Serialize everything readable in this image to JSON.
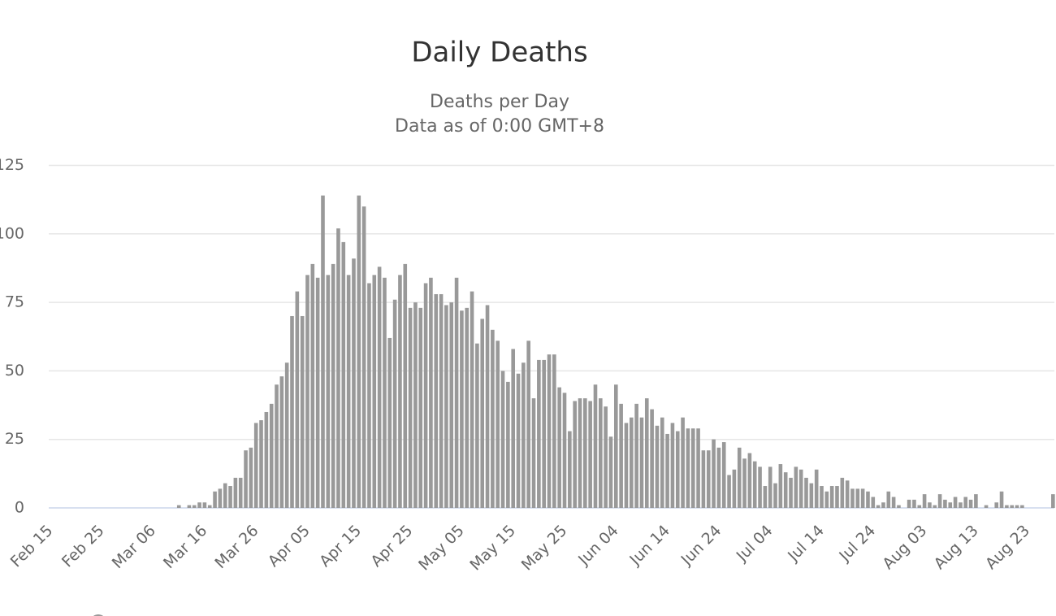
{
  "chart_data": {
    "type": "bar",
    "title": "Daily Deaths",
    "subtitle": [
      "Deaths per Day",
      "Data as of 0:00 GMT+8"
    ],
    "categories": [
      "Feb 15",
      null,
      null,
      null,
      null,
      null,
      null,
      null,
      null,
      null,
      "Feb 25",
      null,
      null,
      null,
      null,
      null,
      null,
      null,
      null,
      null,
      "Mar 06",
      null,
      null,
      null,
      null,
      null,
      null,
      null,
      null,
      null,
      "Mar 16",
      null,
      null,
      null,
      null,
      null,
      null,
      null,
      null,
      null,
      "Mar 26",
      null,
      null,
      null,
      null,
      null,
      null,
      null,
      null,
      null,
      "Apr 05",
      null,
      null,
      null,
      null,
      null,
      null,
      null,
      null,
      null,
      "Apr 15",
      null,
      null,
      null,
      null,
      null,
      null,
      null,
      null,
      null,
      "Apr 25",
      null,
      null,
      null,
      null,
      null,
      null,
      null,
      null,
      null,
      "May 05",
      null,
      null,
      null,
      null,
      null,
      null,
      null,
      null,
      null,
      "May 15",
      null,
      null,
      null,
      null,
      null,
      null,
      null,
      null,
      null,
      "May 25",
      null,
      null,
      null,
      null,
      null,
      null,
      null,
      null,
      null,
      "Jun 04",
      null,
      null,
      null,
      null,
      null,
      null,
      null,
      null,
      null,
      "Jun 14",
      null,
      null,
      null,
      null,
      null,
      null,
      null,
      null,
      null,
      "Jun 24",
      null,
      null,
      null,
      null,
      null,
      null,
      null,
      null,
      null,
      "Jul 04",
      null,
      null,
      null,
      null,
      null,
      null,
      null,
      null,
      null,
      "Jul 14",
      null,
      null,
      null,
      null,
      null,
      null,
      null,
      null,
      null,
      "Jul 24",
      null,
      null,
      null,
      null,
      null,
      null,
      null,
      null,
      null,
      "Aug 03",
      null,
      null,
      null,
      null,
      null,
      null,
      null,
      null,
      null,
      "Aug 13",
      null,
      null,
      null,
      null,
      null,
      null,
      null,
      null,
      null,
      "Aug 23",
      null,
      null,
      null,
      null,
      null
    ],
    "values": [
      0,
      0,
      0,
      0,
      0,
      0,
      0,
      0,
      0,
      0,
      0,
      0,
      0,
      0,
      0,
      0,
      0,
      0,
      0,
      0,
      0,
      0,
      0,
      0,
      0,
      1,
      0,
      1,
      1,
      2,
      2,
      1,
      6,
      7,
      9,
      8,
      11,
      11,
      21,
      22,
      31,
      32,
      35,
      38,
      45,
      48,
      53,
      70,
      79,
      70,
      85,
      89,
      84,
      114,
      85,
      89,
      102,
      97,
      85,
      91,
      114,
      110,
      82,
      85,
      88,
      84,
      62,
      76,
      85,
      89,
      73,
      75,
      73,
      82,
      84,
      78,
      78,
      74,
      75,
      84,
      72,
      73,
      79,
      60,
      69,
      74,
      65,
      61,
      50,
      46,
      58,
      49,
      53,
      61,
      40,
      54,
      54,
      56,
      56,
      44,
      42,
      28,
      39,
      40,
      40,
      39,
      45,
      40,
      37,
      26,
      45,
      38,
      31,
      33,
      38,
      33,
      40,
      36,
      30,
      33,
      27,
      31,
      28,
      33,
      29,
      29,
      29,
      21,
      21,
      25,
      22,
      24,
      12,
      14,
      22,
      18,
      20,
      17,
      15,
      8,
      15,
      9,
      16,
      13,
      11,
      15,
      14,
      11,
      9,
      14,
      8,
      6,
      8,
      8,
      11,
      10,
      7,
      7,
      7,
      6,
      4,
      1,
      2,
      6,
      4,
      1,
      0,
      3,
      3,
      1,
      5,
      2,
      1,
      5,
      3,
      2,
      4,
      2,
      4,
      3,
      5,
      0,
      1,
      0,
      2,
      6,
      1,
      1,
      1,
      1,
      0,
      0,
      0,
      0,
      0,
      5
    ],
    "color": "#999999",
    "ylim": [
      0,
      125
    ],
    "yticks": [
      0,
      25,
      50,
      75,
      100,
      125
    ],
    "grid": true
  }
}
